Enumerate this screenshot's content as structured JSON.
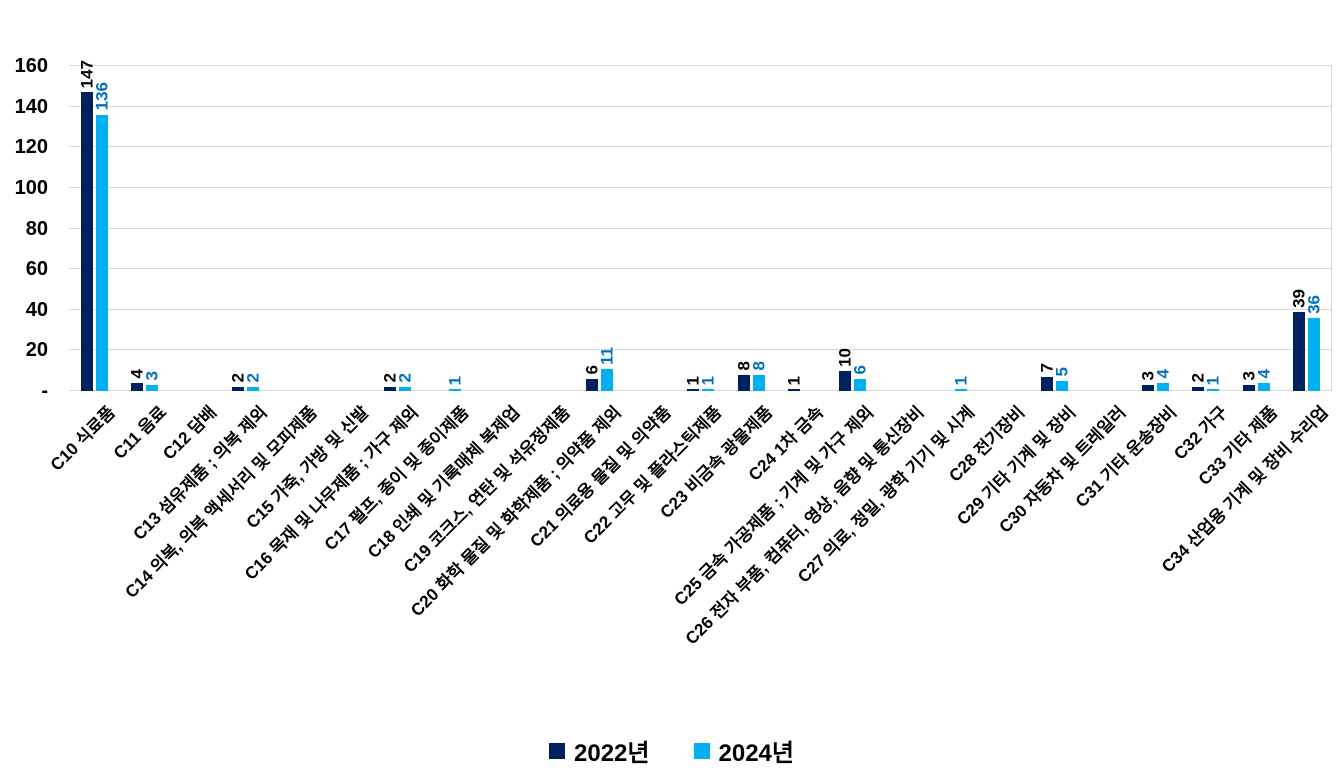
{
  "chart_data": {
    "type": "bar",
    "title": "",
    "xlabel": "",
    "ylabel": "",
    "categories": [
      "C10 식료품",
      "C11 음료",
      "C12 담배",
      "C13 섬유제품 ; 의복 제외",
      "C14 의복, 의복 액세서리 및 모피제품",
      "C15 가죽, 가방 및 신발",
      "C16 목재 및 나무제품 ; 가구 제외",
      "C17 펄프, 종이 및 종이제품",
      "C18 인쇄 및 기록매체 복제업",
      "C19 코크스, 연탄 및 석유정제품",
      "C20 화학 물질 및 화학제품 ; 의약품 제외",
      "C21 의료용 물질 및 의약품",
      "C22 고무 및 플라스틱제품",
      "C23 비금속 광물제품",
      "C24 1차 금속",
      "C25 금속 가공제품 ; 기계 및 가구 제외",
      "C26 전자 부품, 컴퓨터, 영상, 음향 및 통신장비",
      "C27 의료, 정밀, 광학 기기 및 시계",
      "C28 전기장비",
      "C29 기타 기계 및 장비",
      "C30 자동차 및 트레일러",
      "C31 기타 운송장비",
      "C32 가구",
      "C33 기타 제품",
      "C34 산업용 기계 및 장비 수리업"
    ],
    "series": [
      {
        "name": "2022년",
        "color": "#002060",
        "label_color": "#000000",
        "values": [
          147,
          4,
          0,
          2,
          0,
          0,
          2,
          0,
          0,
          0,
          6,
          0,
          1,
          8,
          1,
          10,
          0,
          0,
          0,
          7,
          0,
          3,
          2,
          3,
          39
        ]
      },
      {
        "name": "2024년",
        "color": "#00B0F0",
        "label_color": "#0070C0",
        "values": [
          136,
          3,
          0,
          2,
          0,
          0,
          2,
          1,
          0,
          0,
          11,
          0,
          1,
          8,
          0,
          6,
          0,
          1,
          0,
          5,
          0,
          4,
          1,
          4,
          36
        ]
      }
    ],
    "y_axis": {
      "min": 0,
      "max": 160,
      "step": 20,
      "zero_tick_label": "-",
      "tick_labels": [
        "-",
        "20",
        "40",
        "60",
        "80",
        "100",
        "120",
        "140",
        "160"
      ]
    },
    "grid": true,
    "gridline_color": "#d9d9d9",
    "legend_position": "bottom",
    "data_labels_shown_for_nonzero_only": true
  }
}
